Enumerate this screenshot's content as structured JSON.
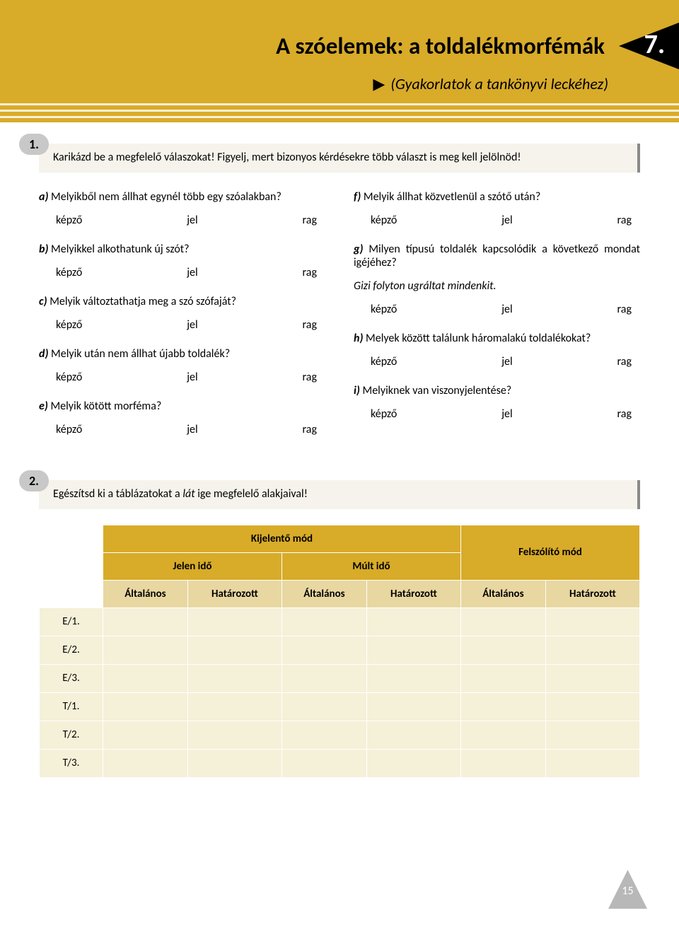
{
  "chapter": {
    "title": "A szóelemek: a toldalékmorfémák",
    "number": "7.",
    "subtitle": "(Gyakorlatok a tankönyvi leckéhez)"
  },
  "colors": {
    "band": "#d8ab29",
    "badge": "#000000",
    "instr_bg": "#f5f3eb",
    "table_head": "#d8ab29",
    "table_sub": "#e8d7a0",
    "table_cell": "#f5f0d8"
  },
  "ex1": {
    "number": "1.",
    "instruction": "Karikázd be a megfelelő válaszokat! Figyelj, mert bizonyos kérdésekre több választ is meg kell jelölnöd!",
    "options": {
      "a": "képző",
      "b": "jel",
      "c": "rag"
    },
    "left": [
      {
        "letter": "a)",
        "text": "Melyikből nem állhat egynél több egy szóalakban?"
      },
      {
        "letter": "b)",
        "text": "Melyikkel alkothatunk új szót?"
      },
      {
        "letter": "c)",
        "text": "Melyik változtathatja meg a szó szófaját?"
      },
      {
        "letter": "d)",
        "text": "Melyik után nem állhat újabb toldalék?"
      },
      {
        "letter": "e)",
        "text": "Melyik kötött morféma?"
      }
    ],
    "right": [
      {
        "letter": "f)",
        "text": "Melyik állhat közvetlenül a szótő után?"
      },
      {
        "letter": "g)",
        "text": "Milyen típusú toldalék kapcsolódik a következő mondat igéjéhez?",
        "sample": "Gizi folyton ugráltat mindenkit."
      },
      {
        "letter": "h)",
        "text": "Melyek között találunk háromalakú toldalékokat?"
      },
      {
        "letter": "i)",
        "text": "Melyiknek van viszonyjelentése?"
      }
    ]
  },
  "ex2": {
    "number": "2.",
    "instruction_pre": "Egészítsd ki a táblázatokat a ",
    "instruction_ital": "lát",
    "instruction_post": " ige megfelelő alakjaival!",
    "table": {
      "mood1": "Kijelentő mód",
      "mood2": "Felszólító mód",
      "tense1": "Jelen idő",
      "tense2": "Múlt idő",
      "def_a": "Általános",
      "def_b": "Határozott",
      "rows": [
        "E/1.",
        "E/2.",
        "E/3.",
        "T/1.",
        "T/2.",
        "T/3."
      ]
    }
  },
  "page_number": "15"
}
